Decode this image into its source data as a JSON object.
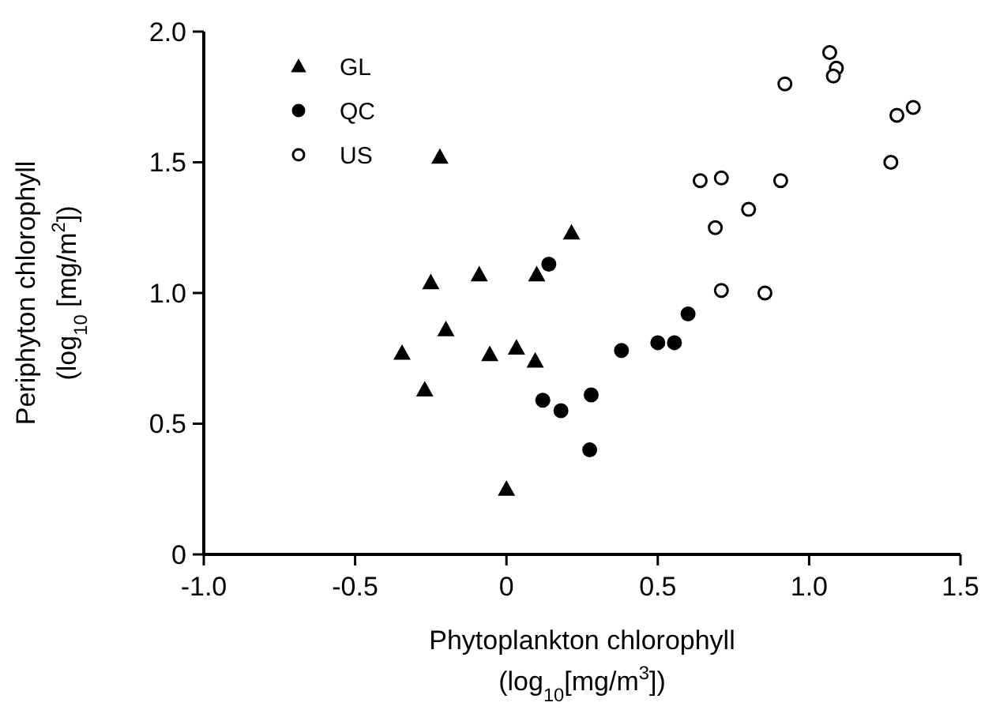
{
  "chart_data": {
    "type": "scatter",
    "xlabel": "Phytoplankton chlorophyll\n(log$_{10}$[mg/m$^{3}$])",
    "ylabel": "Periphyton chlorophyll\n(log$_{10}$ [mg/m$^{2}$])",
    "xlim": [
      -1,
      1.5
    ],
    "xticks": [
      {
        "value": -1,
        "label": "-1.0"
      },
      -0.5,
      0,
      0.5,
      {
        "value": 1,
        "label": "1.0"
      },
      1.5
    ],
    "ylim": [
      0,
      2
    ],
    "yticks": [
      0,
      0.5,
      {
        "value": 1,
        "label": "1.0"
      },
      1.5,
      {
        "value": 2,
        "label": "2.0"
      }
    ],
    "grid": false,
    "legend": "top left",
    "series": [
      {
        "name": "GL",
        "color": "#000000",
        "marker": "triangle",
        "x": [
          -0.22,
          0.215,
          -0.09,
          0.1,
          -0.25,
          -0.2,
          -0.345,
          -0.055,
          0.033,
          0.095,
          -0.27,
          0.0
        ],
        "values": [
          1.52,
          1.23,
          1.07,
          1.07,
          1.04,
          0.86,
          0.77,
          0.765,
          0.79,
          0.74,
          0.63,
          0.25
        ]
      },
      {
        "name": "QC",
        "color": "#000000",
        "marker": "circle",
        "x": [
          0.14,
          0.6,
          0.5,
          0.555,
          0.38,
          0.28,
          0.12,
          0.18,
          0.275
        ],
        "values": [
          1.11,
          0.92,
          0.81,
          0.81,
          0.78,
          0.61,
          0.59,
          0.55,
          0.4
        ]
      },
      {
        "name": "US",
        "color": "#ffffff",
        "marker": "circle",
        "x": [
          1.068,
          1.09,
          1.08,
          0.92,
          1.344,
          1.29,
          1.27,
          0.64,
          0.71,
          0.906,
          0.8,
          0.69,
          0.71,
          0.854
        ],
        "values": [
          1.92,
          1.86,
          1.83,
          1.8,
          1.71,
          1.68,
          1.5,
          1.43,
          1.44,
          1.43,
          1.32,
          1.25,
          1.01,
          1.0
        ]
      }
    ]
  }
}
